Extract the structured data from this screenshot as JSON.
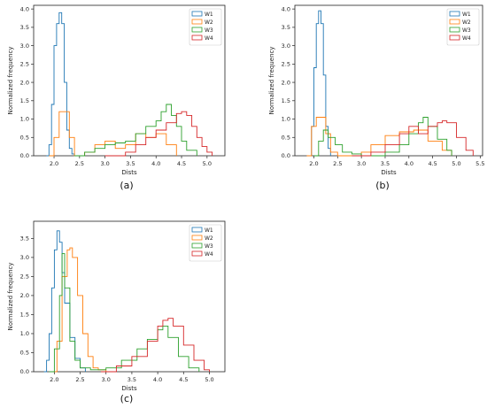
{
  "figure": {
    "panel_labels": [
      "(a)",
      "(b)",
      "(c)"
    ]
  },
  "chart_data": [
    {
      "type": "line",
      "panel": "(a)",
      "xlabel": "Dists",
      "ylabel": "Normalized frequency",
      "xlim": [
        1.6,
        5.35
      ],
      "ylim": [
        0,
        4.1
      ],
      "xticks": [
        2.0,
        2.5,
        3.0,
        3.5,
        4.0,
        4.5,
        5.0
      ],
      "yticks": [
        0.0,
        0.5,
        1.0,
        1.5,
        2.0,
        2.5,
        3.0,
        3.5,
        4.0
      ],
      "legend": "top-right",
      "grid": false,
      "series": [
        {
          "name": "W1",
          "color": "#1f77b4",
          "x": [
            1.85,
            1.9,
            1.95,
            2.0,
            2.05,
            2.1,
            2.15,
            2.2,
            2.25,
            2.3,
            2.35,
            2.4
          ],
          "y": [
            0.0,
            0.3,
            1.4,
            3.0,
            3.6,
            3.9,
            3.6,
            2.0,
            0.7,
            0.2,
            0.05,
            0.0
          ]
        },
        {
          "name": "W2",
          "color": "#ff7f0e",
          "x": [
            1.9,
            2.0,
            2.1,
            2.2,
            2.3,
            2.4,
            2.6,
            2.8,
            3.0,
            3.2,
            3.4,
            3.6,
            3.8,
            4.0,
            4.2,
            4.4
          ],
          "y": [
            0.0,
            0.5,
            1.2,
            1.2,
            0.5,
            0.0,
            0.1,
            0.3,
            0.4,
            0.2,
            0.3,
            0.6,
            0.5,
            0.6,
            0.3,
            0.0
          ]
        },
        {
          "name": "W3",
          "color": "#2ca02c",
          "x": [
            2.4,
            2.6,
            2.8,
            3.0,
            3.2,
            3.4,
            3.6,
            3.8,
            4.0,
            4.1,
            4.2,
            4.3,
            4.4,
            4.5,
            4.6,
            4.8
          ],
          "y": [
            0.0,
            0.1,
            0.2,
            0.3,
            0.35,
            0.4,
            0.6,
            0.8,
            0.95,
            1.2,
            1.4,
            1.1,
            0.8,
            0.4,
            0.15,
            0.0
          ]
        },
        {
          "name": "W4",
          "color": "#d62728",
          "x": [
            3.0,
            3.4,
            3.6,
            3.8,
            4.0,
            4.2,
            4.4,
            4.5,
            4.6,
            4.7,
            4.8,
            4.9,
            5.0,
            5.1
          ],
          "y": [
            0.0,
            0.1,
            0.3,
            0.5,
            0.7,
            0.9,
            1.15,
            1.2,
            1.1,
            0.8,
            0.5,
            0.25,
            0.1,
            0.0
          ]
        }
      ]
    },
    {
      "type": "line",
      "panel": "(b)",
      "xlabel": "Dists",
      "ylabel": "Normalized frequency",
      "xlim": [
        1.6,
        5.55
      ],
      "ylim": [
        0,
        4.1
      ],
      "xticks": [
        2.0,
        2.5,
        3.0,
        3.5,
        4.0,
        4.5,
        5.0,
        5.5
      ],
      "yticks": [
        0.0,
        0.5,
        1.0,
        1.5,
        2.0,
        2.5,
        3.0,
        3.5,
        4.0
      ],
      "legend": "top-right",
      "grid": false,
      "series": [
        {
          "name": "W1",
          "color": "#1f77b4",
          "x": [
            1.9,
            1.95,
            2.0,
            2.05,
            2.1,
            2.15,
            2.2,
            2.25,
            2.3,
            2.35
          ],
          "y": [
            0.0,
            0.8,
            2.4,
            3.6,
            3.95,
            3.6,
            2.2,
            0.8,
            0.2,
            0.0
          ]
        },
        {
          "name": "W2",
          "color": "#ff7f0e",
          "x": [
            1.85,
            1.95,
            2.05,
            2.15,
            2.25,
            2.35,
            2.5,
            3.0,
            3.2,
            3.5,
            3.8,
            4.1,
            4.4,
            4.7,
            4.9
          ],
          "y": [
            0.0,
            0.8,
            1.05,
            1.05,
            0.6,
            0.1,
            0.0,
            0.1,
            0.3,
            0.55,
            0.65,
            0.7,
            0.4,
            0.15,
            0.0
          ]
        },
        {
          "name": "W3",
          "color": "#2ca02c",
          "x": [
            2.0,
            2.1,
            2.2,
            2.3,
            2.45,
            2.6,
            2.8,
            3.0,
            3.5,
            3.8,
            4.0,
            4.2,
            4.3,
            4.4,
            4.6,
            4.8,
            4.9
          ],
          "y": [
            0.0,
            0.4,
            0.7,
            0.5,
            0.3,
            0.1,
            0.05,
            0.0,
            0.1,
            0.3,
            0.6,
            0.9,
            1.05,
            0.8,
            0.45,
            0.15,
            0.0
          ]
        },
        {
          "name": "W4",
          "color": "#d62728",
          "x": [
            2.8,
            3.2,
            3.5,
            3.8,
            4.0,
            4.2,
            4.4,
            4.6,
            4.7,
            4.8,
            5.0,
            5.2,
            5.35
          ],
          "y": [
            0.0,
            0.1,
            0.3,
            0.6,
            0.8,
            0.6,
            0.8,
            0.9,
            0.95,
            0.9,
            0.5,
            0.15,
            0.0
          ]
        }
      ]
    },
    {
      "type": "line",
      "panel": "(c)",
      "xlabel": "Dists",
      "ylabel": "Normalized frequency",
      "xlim": [
        1.6,
        5.3
      ],
      "ylim": [
        0,
        3.95
      ],
      "xticks": [
        2.0,
        2.5,
        3.0,
        3.5,
        4.0,
        4.5,
        5.0
      ],
      "yticks": [
        0.0,
        0.5,
        1.0,
        1.5,
        2.0,
        2.5,
        3.0,
        3.5
      ],
      "legend": "top-right",
      "grid": false,
      "series": [
        {
          "name": "W1",
          "color": "#1f77b4",
          "x": [
            1.8,
            1.85,
            1.9,
            1.95,
            2.0,
            2.05,
            2.1,
            2.15,
            2.2,
            2.3,
            2.4,
            2.5,
            2.6
          ],
          "y": [
            0.0,
            0.3,
            1.0,
            2.2,
            3.2,
            3.7,
            3.4,
            2.6,
            1.8,
            0.9,
            0.35,
            0.1,
            0.0
          ]
        },
        {
          "name": "W2",
          "color": "#ff7f0e",
          "x": [
            1.95,
            2.05,
            2.15,
            2.25,
            2.3,
            2.35,
            2.45,
            2.55,
            2.65,
            2.75,
            2.85,
            3.0
          ],
          "y": [
            0.0,
            0.8,
            2.5,
            3.2,
            3.25,
            3.0,
            2.0,
            1.0,
            0.4,
            0.1,
            0.05,
            0.0
          ]
        },
        {
          "name": "W3",
          "color": "#2ca02c",
          "x": [
            1.9,
            2.0,
            2.1,
            2.15,
            2.2,
            2.3,
            2.4,
            2.5,
            2.7,
            3.0,
            3.3,
            3.6,
            3.8,
            4.0,
            4.1,
            4.2,
            4.4,
            4.6,
            4.8
          ],
          "y": [
            0.0,
            0.6,
            2.0,
            3.1,
            2.2,
            0.8,
            0.3,
            0.1,
            0.05,
            0.1,
            0.3,
            0.6,
            0.85,
            1.1,
            1.2,
            0.9,
            0.4,
            0.1,
            0.0
          ]
        },
        {
          "name": "W4",
          "color": "#d62728",
          "x": [
            2.9,
            3.2,
            3.5,
            3.8,
            4.0,
            4.1,
            4.2,
            4.3,
            4.5,
            4.7,
            4.9,
            5.0
          ],
          "y": [
            0.0,
            0.15,
            0.4,
            0.8,
            1.2,
            1.35,
            1.4,
            1.2,
            0.7,
            0.3,
            0.05,
            0.0
          ]
        }
      ]
    }
  ]
}
